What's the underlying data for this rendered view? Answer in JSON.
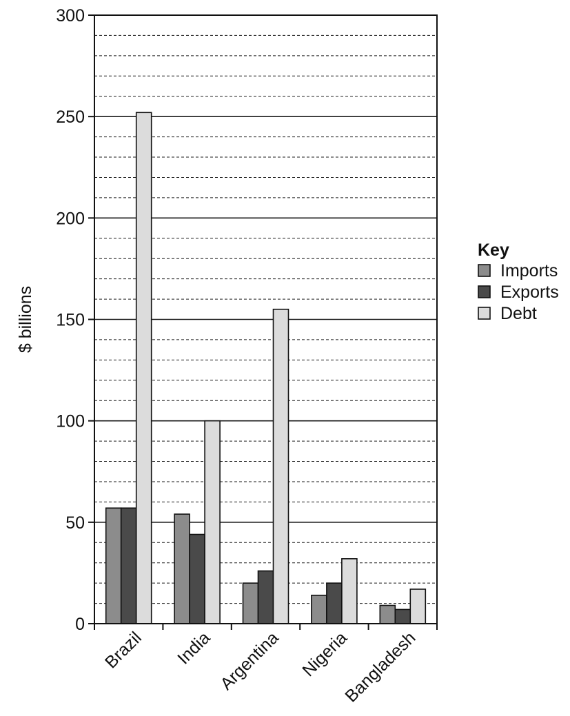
{
  "chart_data": {
    "type": "bar",
    "title": "",
    "xlabel": "",
    "ylabel": "$ billions",
    "ylim": [
      0,
      300
    ],
    "y_major_ticks": [
      0,
      50,
      100,
      150,
      200,
      250,
      300
    ],
    "y_minor_step": 10,
    "grid": "major solid, minor dashed",
    "categories": [
      "Brazil",
      "India",
      "Argentina",
      "Nigeria",
      "Bangladesh"
    ],
    "series": [
      {
        "name": "Imports",
        "color": "#8c8c8c",
        "values": [
          57,
          54,
          20,
          14,
          9
        ]
      },
      {
        "name": "Exports",
        "color": "#4a4a4a",
        "values": [
          57,
          44,
          26,
          20,
          7
        ]
      },
      {
        "name": "Debt",
        "color": "#dcdcdc",
        "values": [
          252,
          100,
          155,
          32,
          17
        ]
      }
    ],
    "legend": {
      "title": "Key",
      "position": "right"
    }
  }
}
